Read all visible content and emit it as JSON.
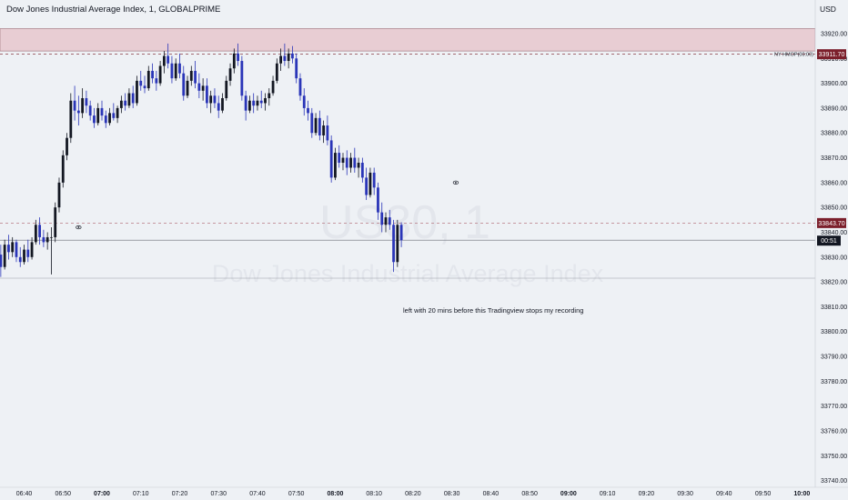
{
  "header": {
    "title": "Dow Jones Industrial Average Index, 1, GLOBALPRIME",
    "currency": "USD"
  },
  "watermark": {
    "symbol": "US30, 1",
    "name": "Dow Jones Industrial Average Index"
  },
  "annotation": "left with 20 mins before this Tradingview stops my recording",
  "colors": {
    "background": "#eef1f5",
    "up": "#131722",
    "down": "#2a35b8",
    "zone": "#e8cdd3",
    "marker": "#7b1f2b"
  },
  "chart_data": {
    "type": "candlestick",
    "ylim": [
      33735,
      33928
    ],
    "y_ticks": [
      33740,
      33750,
      33760,
      33770,
      33780,
      33790,
      33800,
      33810,
      33820,
      33830,
      33840,
      33850,
      33860,
      33870,
      33880,
      33890,
      33900,
      33910,
      33920
    ],
    "x_ticks": [
      {
        "t": -14,
        "label": "06:40"
      },
      {
        "t": -4,
        "label": "06:50"
      },
      {
        "t": 6,
        "label": "07:00",
        "bold": true
      },
      {
        "t": 16,
        "label": "07:10"
      },
      {
        "t": 26,
        "label": "07:20"
      },
      {
        "t": 36,
        "label": "07:30"
      },
      {
        "t": 46,
        "label": "07:40"
      },
      {
        "t": 56,
        "label": "07:50"
      },
      {
        "t": 66,
        "label": "08:00",
        "bold": true
      },
      {
        "t": 76,
        "label": "08:10"
      },
      {
        "t": 86,
        "label": "08:20"
      },
      {
        "t": 96,
        "label": "08:30"
      },
      {
        "t": 106,
        "label": "08:40"
      },
      {
        "t": 116,
        "label": "08:50"
      },
      {
        "t": 126,
        "label": "09:00",
        "bold": true
      },
      {
        "t": 136,
        "label": "09:10"
      },
      {
        "t": 146,
        "label": "09:20"
      },
      {
        "t": 156,
        "label": "09:30"
      },
      {
        "t": 166,
        "label": "09:40"
      },
      {
        "t": 176,
        "label": "09:50"
      },
      {
        "t": 186,
        "label": "10:00",
        "bold": true
      }
    ],
    "t_start": -27,
    "zone": [
      33913,
      33922
    ],
    "ny_hmop": {
      "label": "NY HMOP(00:00)",
      "value": 33911.7,
      "value_label": "33911.70"
    },
    "prev_line": {
      "value": 33843.7,
      "value_label": "33843.70"
    },
    "last_price": {
      "value": 33836.8,
      "countdown": "00:51"
    },
    "low_line": 33821.5,
    "eye_markers": [
      {
        "t": 0,
        "value": 33842
      },
      {
        "t": 97,
        "value": 33860
      }
    ],
    "candles": [
      [
        33844,
        33847,
        33838,
        33840
      ],
      [
        33840,
        33842,
        33832,
        33835
      ],
      [
        33835,
        33845,
        33834,
        33843
      ],
      [
        33843,
        33846,
        33836,
        33838
      ],
      [
        33838,
        33841,
        33830,
        33833
      ],
      [
        33833,
        33840,
        33831,
        33838
      ],
      [
        33838,
        33840,
        33828,
        33831
      ],
      [
        33831,
        33835,
        33822,
        33826
      ],
      [
        33826,
        33837,
        33825,
        33835
      ],
      [
        33835,
        33839,
        33829,
        33832
      ],
      [
        33832,
        33838,
        33830,
        33836
      ],
      [
        33836,
        33837,
        33828,
        33830
      ],
      [
        33830,
        33834,
        33826,
        33828
      ],
      [
        33828,
        33835,
        33827,
        33833
      ],
      [
        33833,
        33837,
        33828,
        33830
      ],
      [
        33830,
        33838,
        33829,
        33836
      ],
      [
        33836,
        33845,
        33835,
        33843
      ],
      [
        33843,
        33846,
        33835,
        33838
      ],
      [
        33838,
        33841,
        33834,
        33836
      ],
      [
        33836,
        33840,
        33833,
        33838
      ],
      [
        33838,
        33842,
        33823,
        33838
      ],
      [
        33838,
        33852,
        33836,
        33850
      ],
      [
        33850,
        33862,
        33848,
        33860
      ],
      [
        33860,
        33873,
        33858,
        33871
      ],
      [
        33871,
        33880,
        33869,
        33878
      ],
      [
        33878,
        33896,
        33876,
        33893
      ],
      [
        33893,
        33899,
        33885,
        33889
      ],
      [
        33889,
        33895,
        33883,
        33888
      ],
      [
        33888,
        33898,
        33886,
        33894
      ],
      [
        33894,
        33897,
        33888,
        33891
      ],
      [
        33891,
        33893,
        33885,
        33887
      ],
      [
        33887,
        33890,
        33882,
        33884
      ],
      [
        33884,
        33892,
        33883,
        33890
      ],
      [
        33890,
        33893,
        33885,
        33887
      ],
      [
        33887,
        33889,
        33882,
        33884
      ],
      [
        33884,
        33890,
        33883,
        33888
      ],
      [
        33888,
        33892,
        33885,
        33886
      ],
      [
        33886,
        33891,
        33884,
        33890
      ],
      [
        33890,
        33895,
        33888,
        33893
      ],
      [
        33893,
        33896,
        33889,
        33891
      ],
      [
        33891,
        33898,
        33890,
        33896
      ],
      [
        33896,
        33899,
        33890,
        33892
      ],
      [
        33892,
        33903,
        33891,
        33901
      ],
      [
        33901,
        33905,
        33897,
        33899
      ],
      [
        33899,
        33903,
        33896,
        33898
      ],
      [
        33898,
        33907,
        33897,
        33905
      ],
      [
        33905,
        33908,
        33900,
        33902
      ],
      [
        33902,
        33905,
        33897,
        33900
      ],
      [
        33900,
        33909,
        33899,
        33907
      ],
      [
        33907,
        33913,
        33904,
        33911
      ],
      [
        33911,
        33916,
        33906,
        33908
      ],
      [
        33908,
        33911,
        33900,
        33902
      ],
      [
        33902,
        33910,
        33901,
        33908
      ],
      [
        33908,
        33912,
        33902,
        33904
      ],
      [
        33904,
        33907,
        33893,
        33895
      ],
      [
        33895,
        33903,
        33894,
        33901
      ],
      [
        33901,
        33907,
        33899,
        33905
      ],
      [
        33905,
        33909,
        33898,
        33900
      ],
      [
        33900,
        33904,
        33894,
        33897
      ],
      [
        33897,
        33902,
        33893,
        33899
      ],
      [
        33899,
        33902,
        33890,
        33892
      ],
      [
        33892,
        33897,
        33888,
        33895
      ],
      [
        33895,
        33898,
        33890,
        33892
      ],
      [
        33892,
        33895,
        33886,
        33889
      ],
      [
        33889,
        33896,
        33888,
        33894
      ],
      [
        33894,
        33903,
        33893,
        33901
      ],
      [
        33901,
        33908,
        33899,
        33906
      ],
      [
        33906,
        33914,
        33904,
        33912
      ],
      [
        33912,
        33916,
        33907,
        33909
      ],
      [
        33909,
        33911,
        33893,
        33895
      ],
      [
        33895,
        33897,
        33885,
        33889
      ],
      [
        33889,
        33895,
        33888,
        33893
      ],
      [
        33893,
        33896,
        33888,
        33891
      ],
      [
        33891,
        33895,
        33889,
        33893
      ],
      [
        33893,
        33897,
        33890,
        33892
      ],
      [
        33892,
        33896,
        33889,
        33894
      ],
      [
        33894,
        33898,
        33891,
        33896
      ],
      [
        33896,
        33903,
        33895,
        33901
      ],
      [
        33901,
        33910,
        33900,
        33908
      ],
      [
        33908,
        33914,
        33905,
        33911
      ],
      [
        33911,
        33916,
        33907,
        33909
      ],
      [
        33909,
        33914,
        33906,
        33912
      ],
      [
        33912,
        33915,
        33908,
        33910
      ],
      [
        33910,
        33912,
        33900,
        33902
      ],
      [
        33902,
        33904,
        33893,
        33895
      ],
      [
        33895,
        33898,
        33887,
        33890
      ],
      [
        33890,
        33893,
        33885,
        33888
      ],
      [
        33888,
        33890,
        33878,
        33880
      ],
      [
        33880,
        33888,
        33879,
        33886
      ],
      [
        33886,
        33889,
        33877,
        33879
      ],
      [
        33879,
        33885,
        33876,
        33883
      ],
      [
        33883,
        33887,
        33875,
        33877
      ],
      [
        33877,
        33879,
        33860,
        33862
      ],
      [
        33862,
        33874,
        33861,
        33872
      ],
      [
        33872,
        33875,
        33866,
        33868
      ],
      [
        33868,
        33872,
        33865,
        33870
      ],
      [
        33870,
        33873,
        33863,
        33866
      ],
      [
        33866,
        33872,
        33864,
        33870
      ],
      [
        33870,
        33874,
        33864,
        33866
      ],
      [
        33866,
        33870,
        33862,
        33868
      ],
      [
        33868,
        33870,
        33860,
        33862
      ],
      [
        33862,
        33866,
        33853,
        33855
      ],
      [
        33855,
        33866,
        33854,
        33864
      ],
      [
        33864,
        33866,
        33855,
        33858
      ],
      [
        33858,
        33860,
        33845,
        33848
      ],
      [
        33848,
        33852,
        33840,
        33843
      ],
      [
        33843,
        33848,
        33840,
        33846
      ],
      [
        33846,
        33849,
        33841,
        33843
      ],
      [
        33843,
        33845,
        33824,
        33828
      ],
      [
        33828,
        33845,
        33826,
        33843
      ],
      [
        33843,
        33844,
        33834,
        33836.8
      ]
    ]
  }
}
